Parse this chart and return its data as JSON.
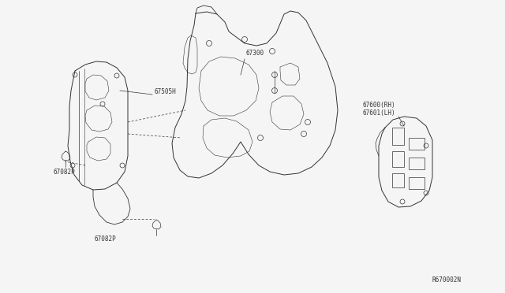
{
  "background_color": "#f5f5f5",
  "fig_width": 6.4,
  "fig_height": 3.72,
  "dpi": 100,
  "line_color": "#333333",
  "text_color": "#333333",
  "font_size": 5.5,
  "label_67300": "67300",
  "label_67505H": "67505H",
  "label_67082P_top": "67082P",
  "label_67082P_bot": "67082P",
  "label_67600RH": "67600(RH)",
  "label_67601LH": "67601(LH)",
  "diagram_id_text": "R670002N"
}
